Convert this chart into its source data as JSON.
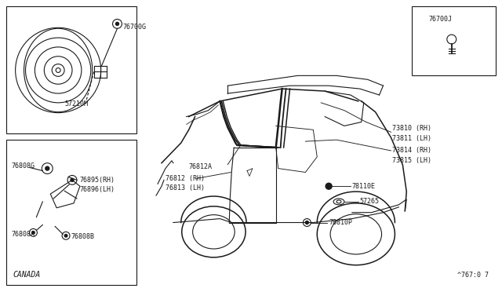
{
  "bg_color": "#ffffff",
  "line_color": "#1a1a1a",
  "text_color": "#1a1a1a",
  "fig_note": "^767:0 7",
  "box1_label": "76700G",
  "box1_sublabel": "57210M",
  "box2_label": "76808G",
  "box2_footer": "CANADA",
  "box3_label": "76700J"
}
